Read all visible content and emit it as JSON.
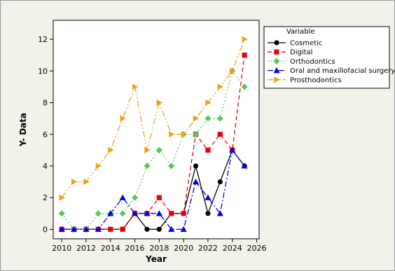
{
  "chart_data": {
    "type": "line",
    "xlabel": "Year",
    "ylabel": "Y- Data",
    "xlim": [
      2009.3,
      2026.2
    ],
    "ylim": [
      -0.6,
      13.2
    ],
    "xticks": [
      2010,
      2012,
      2014,
      2016,
      2018,
      2020,
      2022,
      2024,
      2026
    ],
    "yticks": [
      0,
      2,
      4,
      6,
      8,
      10,
      12
    ],
    "grid": false,
    "legend_title": "Variable",
    "legend_position": "right",
    "x": [
      2010,
      2011,
      2012,
      2013,
      2014,
      2015,
      2016,
      2017,
      2018,
      2019,
      2020,
      2021,
      2022,
      2023,
      2024,
      2025
    ],
    "series": [
      {
        "name": "Cosmetic",
        "color": "#000000",
        "marker": "circle",
        "dash": "solid",
        "values": [
          0,
          0,
          0,
          0,
          0,
          0,
          1,
          0,
          0,
          1,
          1,
          4,
          1,
          3,
          5,
          4
        ]
      },
      {
        "name": "Digital",
        "color": "#ee0000",
        "marker": "square",
        "dash": "6,4",
        "values": [
          0,
          0,
          0,
          0,
          0,
          0,
          1,
          1,
          2,
          1,
          1,
          6,
          5,
          6,
          5,
          11
        ]
      },
      {
        "name": "Orthodontics",
        "color": "#5bc85b",
        "marker": "diamond",
        "dash": "2,3",
        "values": [
          1,
          0,
          0,
          1,
          1,
          1,
          2,
          4,
          5,
          4,
          6,
          6,
          7,
          7,
          10,
          9
        ]
      },
      {
        "name": "Oral and maxillofacial surgery",
        "color": "#0000ee",
        "marker": "triangle",
        "dash": "8,3,2,3",
        "values": [
          0,
          0,
          0,
          0,
          1,
          2,
          1,
          1,
          1,
          0,
          0,
          3,
          2,
          1,
          5,
          4
        ]
      },
      {
        "name": "Prosthodontics",
        "color": "#f0a020",
        "marker": "triangle-right",
        "dash": "9,3,2,3,2,3",
        "values": [
          2,
          3,
          3,
          4,
          5,
          7,
          9,
          5,
          8,
          6,
          6,
          7,
          8,
          9,
          10,
          12
        ]
      }
    ]
  }
}
